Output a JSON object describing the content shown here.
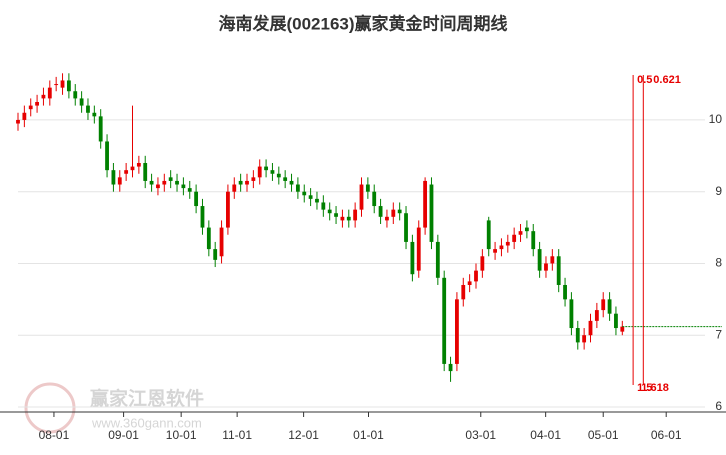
{
  "chart_data": {
    "type": "candlestick",
    "title": "海南发展(002163)赢家黄金时间周期线",
    "watermark": [
      "赢家江恩软件",
      "www.360gann.com"
    ],
    "xlim": [
      0,
      108
    ],
    "xticks": [
      {
        "value": 5.65,
        "label": "08-01"
      },
      {
        "value": 16.6,
        "label": "09-01"
      },
      {
        "value": 25.65,
        "label": "10-01"
      },
      {
        "value": 34.45,
        "label": "11-01"
      },
      {
        "value": 44.9,
        "label": "12-01"
      },
      {
        "value": 55.1,
        "label": "01-01"
      },
      {
        "value": 72.75,
        "label": "03-01"
      },
      {
        "value": 82.95,
        "label": "04-01"
      },
      {
        "value": 92,
        "label": "05-01"
      },
      {
        "value": 101.9,
        "label": "06-01"
      }
    ],
    "ylim": [
      5.93,
      11.1
    ],
    "yticks": [
      6,
      7,
      8,
      9,
      10
    ],
    "grid": true,
    "up_color": "#e60000",
    "down_color": "#008000",
    "open": [
      9.95,
      10.0,
      10.15,
      10.2,
      10.3,
      10.3,
      10.5,
      10.45,
      10.55,
      10.4,
      10.3,
      10.2,
      10.1,
      10.05,
      9.7,
      9.3,
      9.1,
      9.25,
      9.3,
      9.35,
      9.4,
      9.15,
      9.05,
      9.1,
      9.2,
      9.15,
      9.1,
      9.05,
      9.0,
      8.8,
      8.5,
      8.2,
      8.1,
      8.5,
      9.0,
      9.15,
      9.1,
      9.15,
      9.2,
      9.35,
      9.3,
      9.25,
      9.2,
      9.15,
      9.1,
      9.0,
      8.95,
      8.9,
      8.85,
      8.75,
      8.7,
      8.6,
      8.65,
      8.6,
      8.75,
      9.1,
      9.0,
      8.8,
      8.6,
      8.65,
      8.75,
      8.7,
      8.3,
      7.9,
      8.5,
      9.1,
      8.3,
      7.8,
      6.6,
      6.6,
      7.5,
      7.7,
      7.75,
      7.9,
      8.6,
      8.15,
      8.2,
      8.25,
      8.3,
      8.4,
      8.5,
      8.45,
      8.2,
      7.9,
      8.0,
      8.1,
      7.7,
      7.5,
      7.1,
      6.9,
      7.0,
      7.2,
      7.35,
      7.5,
      7.3,
      7.05
    ],
    "high": [
      10.1,
      10.2,
      10.3,
      10.35,
      10.45,
      10.55,
      10.6,
      10.65,
      10.65,
      10.5,
      10.4,
      10.3,
      10.2,
      10.15,
      9.8,
      9.4,
      9.3,
      9.4,
      10.2,
      9.5,
      9.5,
      9.25,
      9.2,
      9.25,
      9.3,
      9.25,
      9.2,
      9.15,
      9.1,
      8.9,
      8.6,
      8.3,
      8.6,
      9.1,
      9.2,
      9.25,
      9.25,
      9.3,
      9.45,
      9.45,
      9.4,
      9.35,
      9.3,
      9.25,
      9.2,
      9.1,
      9.05,
      9.0,
      8.95,
      8.85,
      8.8,
      8.75,
      8.75,
      8.85,
      9.2,
      9.2,
      9.1,
      8.9,
      8.75,
      8.85,
      8.85,
      8.8,
      8.4,
      8.6,
      9.2,
      9.2,
      8.4,
      7.9,
      6.7,
      7.6,
      7.8,
      7.85,
      8.0,
      8.2,
      8.65,
      8.3,
      8.35,
      8.4,
      8.5,
      8.55,
      8.6,
      8.55,
      8.3,
      8.1,
      8.2,
      8.2,
      7.8,
      7.6,
      7.2,
      7.1,
      7.3,
      7.45,
      7.6,
      7.6,
      7.4,
      7.2
    ],
    "low": [
      9.85,
      9.9,
      10.05,
      10.1,
      10.2,
      10.2,
      10.4,
      10.35,
      10.3,
      10.2,
      10.1,
      10.0,
      9.95,
      9.6,
      9.2,
      9.0,
      9.0,
      9.15,
      9.2,
      9.25,
      9.05,
      9.0,
      8.95,
      9.0,
      9.05,
      9.0,
      8.95,
      8.9,
      8.7,
      8.4,
      8.1,
      7.95,
      8.0,
      8.4,
      8.9,
      9.0,
      9.0,
      9.05,
      9.1,
      9.2,
      9.15,
      9.1,
      9.05,
      9.0,
      8.9,
      8.85,
      8.8,
      8.75,
      8.65,
      8.6,
      8.55,
      8.5,
      8.5,
      8.5,
      8.65,
      8.9,
      8.7,
      8.55,
      8.5,
      8.55,
      8.6,
      8.2,
      7.75,
      7.8,
      8.4,
      8.2,
      7.7,
      6.5,
      6.35,
      6.5,
      7.4,
      7.6,
      7.65,
      7.8,
      8.1,
      8.05,
      8.1,
      8.15,
      8.2,
      8.3,
      8.35,
      8.1,
      7.8,
      7.8,
      7.9,
      7.6,
      7.4,
      7.0,
      6.8,
      6.8,
      6.9,
      7.1,
      7.25,
      7.2,
      7.0,
      7.0
    ],
    "close": [
      10.0,
      10.1,
      10.2,
      10.25,
      10.35,
      10.45,
      10.5,
      10.55,
      10.4,
      10.3,
      10.2,
      10.1,
      10.05,
      9.7,
      9.3,
      9.1,
      9.2,
      9.3,
      9.35,
      9.4,
      9.15,
      9.1,
      9.1,
      9.15,
      9.15,
      9.1,
      9.05,
      9.0,
      8.8,
      8.5,
      8.2,
      8.05,
      8.5,
      9.0,
      9.1,
      9.1,
      9.15,
      9.2,
      9.35,
      9.3,
      9.25,
      9.2,
      9.15,
      9.1,
      9.0,
      8.95,
      8.9,
      8.85,
      8.75,
      8.7,
      8.65,
      8.65,
      8.6,
      8.75,
      9.1,
      9.0,
      8.8,
      8.65,
      8.65,
      8.75,
      8.7,
      8.3,
      7.85,
      8.5,
      9.15,
      8.3,
      7.8,
      6.6,
      6.5,
      7.5,
      7.7,
      7.75,
      7.9,
      8.1,
      8.2,
      8.2,
      8.25,
      8.3,
      8.4,
      8.45,
      8.45,
      8.2,
      7.9,
      8.0,
      8.1,
      7.7,
      7.5,
      7.1,
      6.9,
      7.0,
      7.2,
      7.35,
      7.5,
      7.3,
      7.1,
      7.12
    ],
    "last_price": 7.12,
    "last_price_color": "#008000",
    "time_lines": [
      {
        "x": 96.7,
        "top_label": "0.5",
        "bottom_label": "1.5"
      },
      {
        "x": 98.3,
        "top_label": "0.621",
        "bottom_label": "1.618"
      }
    ],
    "time_line_color": "#e60000"
  }
}
